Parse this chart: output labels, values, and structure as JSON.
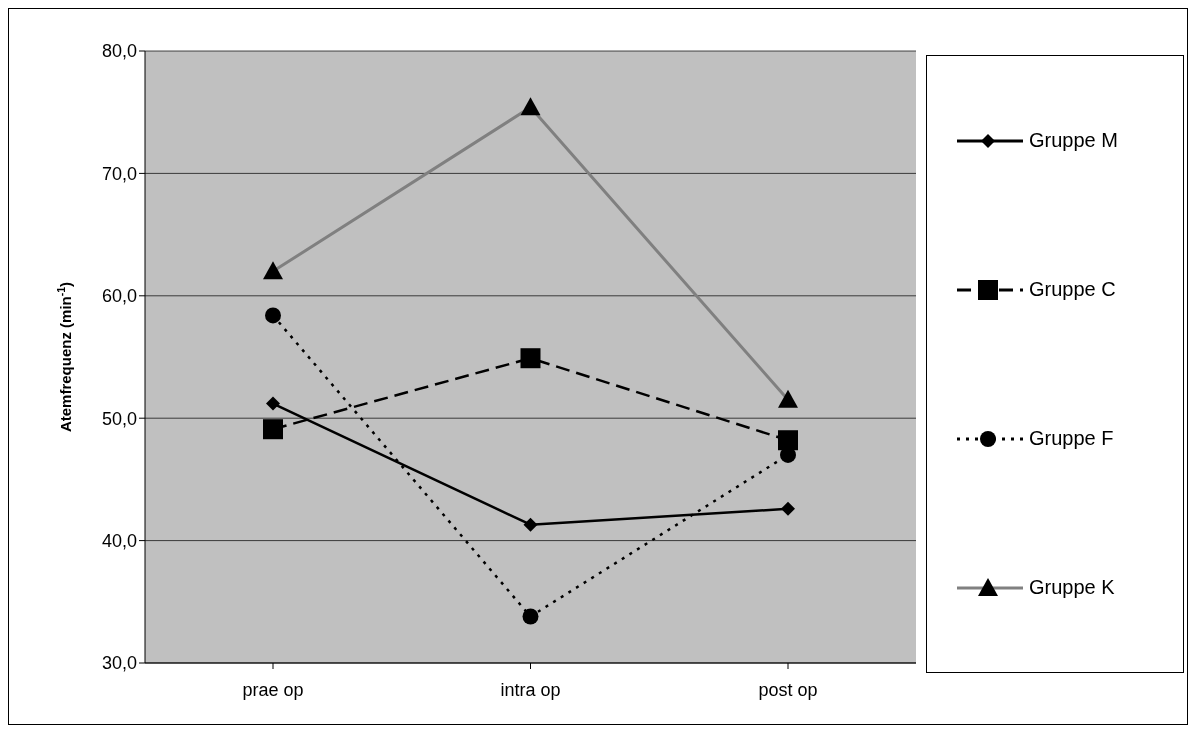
{
  "chart_data": {
    "type": "line",
    "ylabel": "Atemfrequenz (min$^{-1}$)",
    "categories": [
      "prae op",
      "intra op",
      "post op"
    ],
    "series": [
      {
        "name": "Gruppe M",
        "color": "#000000",
        "values": [
          51.2,
          41.3,
          42.6
        ],
        "marker": "diamond",
        "line_style": "solid"
      },
      {
        "name": "Gruppe C",
        "color": "#000000",
        "values": [
          49.1,
          54.9,
          48.2
        ],
        "marker": "square",
        "line_style": "dashed"
      },
      {
        "name": "Gruppe F",
        "color": "#000000",
        "values": [
          58.4,
          33.8,
          47.0
        ],
        "marker": "circle",
        "line_style": "dotted"
      },
      {
        "name": "Gruppe K",
        "color": "#808080",
        "values": [
          62.0,
          75.4,
          51.5
        ],
        "marker": "triangle",
        "line_style": "solid"
      }
    ],
    "ylim": [
      30,
      80
    ],
    "yticks": [
      {
        "value": 30,
        "label": "30,0"
      },
      {
        "value": 40,
        "label": "40,0"
      },
      {
        "value": 50,
        "label": "50,0"
      },
      {
        "value": 60,
        "label": "60,0"
      },
      {
        "value": 70,
        "label": "70,0"
      },
      {
        "value": 80,
        "label": "80,0"
      }
    ],
    "grid": "y",
    "legend": "right"
  }
}
